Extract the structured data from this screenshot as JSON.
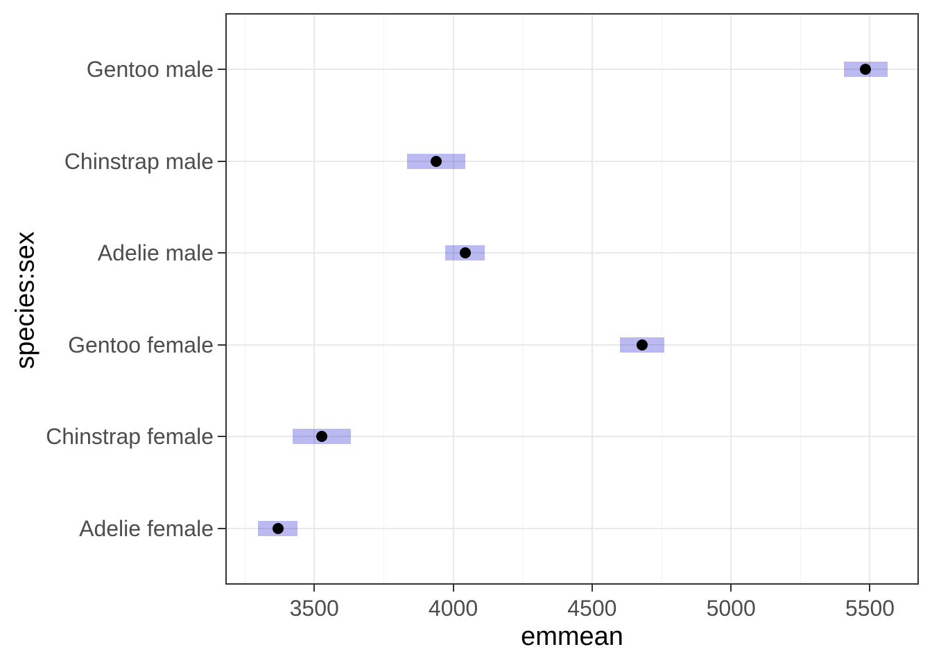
{
  "chart_data": {
    "type": "scatter",
    "subtype": "pointrange-horizontal",
    "description": "Estimated marginal means with 95% confidence intervals",
    "xlabel": "emmean",
    "ylabel": "species:sex",
    "categories_top_to_bottom": [
      "Gentoo male",
      "Chinstrap male",
      "Adelie male",
      "Gentoo female",
      "Chinstrap female",
      "Adelie female"
    ],
    "series": [
      {
        "label": "Gentoo male",
        "emmean": 5484.8,
        "lower_cl": 5406.9,
        "upper_cl": 5562.8
      },
      {
        "label": "Chinstrap male",
        "emmean": 3939.0,
        "lower_cl": 3834.6,
        "upper_cl": 4043.4
      },
      {
        "label": "Adelie male",
        "emmean": 4043.5,
        "lower_cl": 3972.3,
        "upper_cl": 4114.7
      },
      {
        "label": "Gentoo female",
        "emmean": 4679.7,
        "lower_cl": 4599.8,
        "upper_cl": 4759.7
      },
      {
        "label": "Chinstrap female",
        "emmean": 3527.2,
        "lower_cl": 3422.8,
        "upper_cl": 3631.6
      },
      {
        "label": "Adelie female",
        "emmean": 3368.8,
        "lower_cl": 3297.6,
        "upper_cl": 3440.1
      }
    ],
    "x_ticks": [
      3500,
      4000,
      4500,
      5000,
      5500
    ],
    "x_minor_ticks": [
      3250,
      3750,
      4250,
      4750,
      5250
    ],
    "xlim": [
      3185,
      5671
    ],
    "grid": true,
    "legend": "none",
    "colors": {
      "ci_fill": "rgba(0, 0, 205, 0.27)",
      "point": "#000000",
      "grid_major": "#e9e9e9",
      "grid_minor": "#f4f4f4",
      "panel_border": "#333333",
      "tick_mark": "#333333",
      "axis_text": "#4d4d4d",
      "axis_title": "#000000",
      "background": "#ffffff"
    }
  }
}
